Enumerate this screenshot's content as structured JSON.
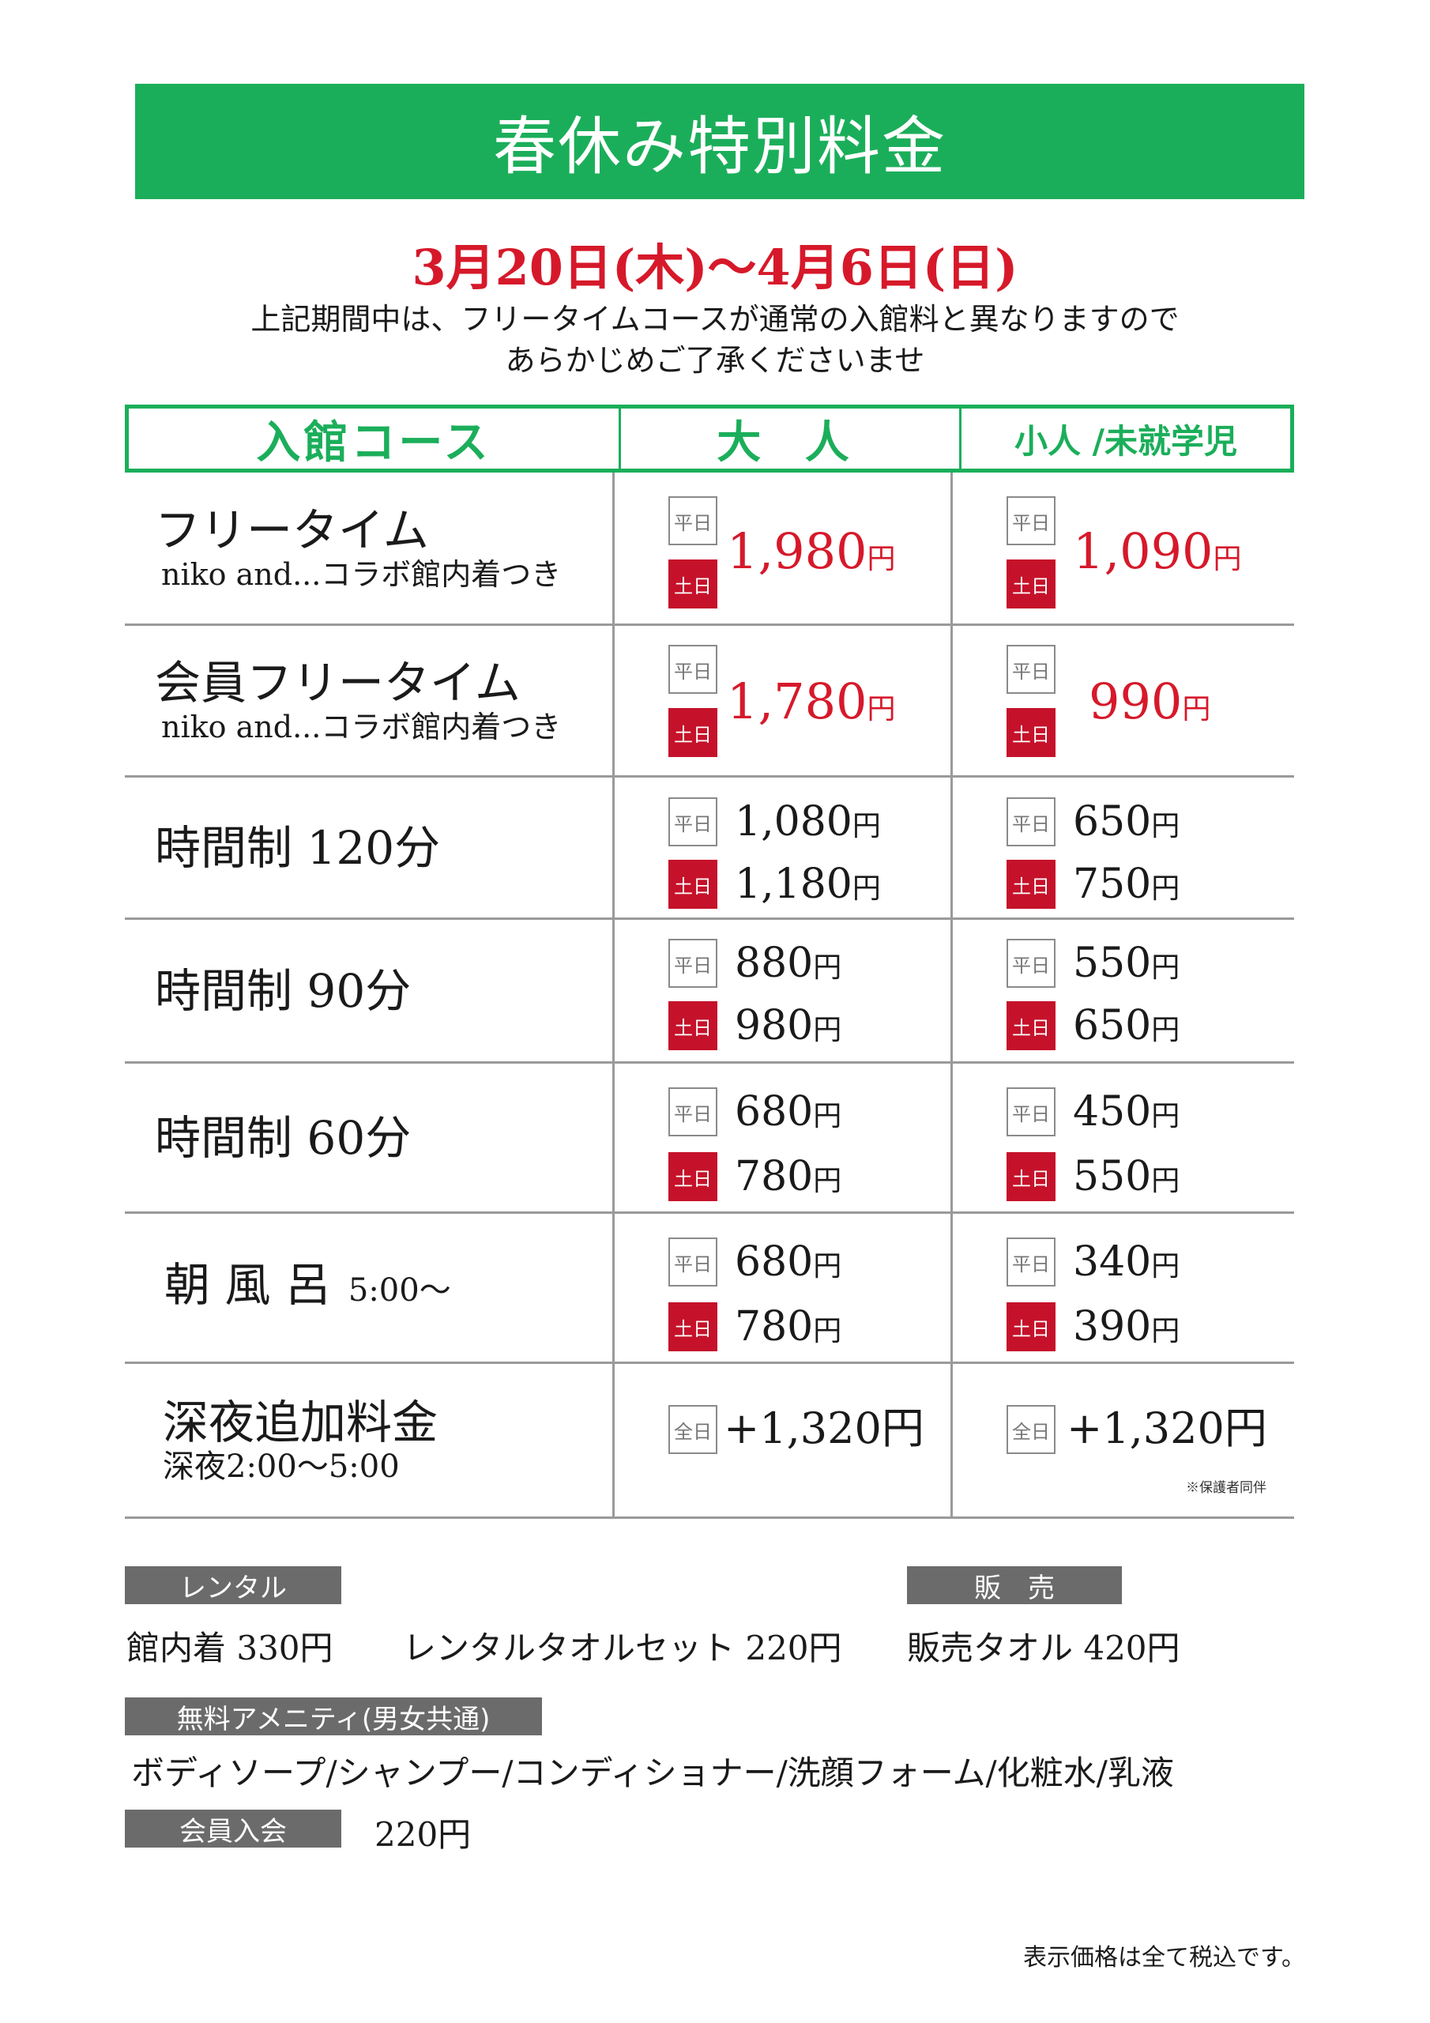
{
  "title": "春休み特別料金",
  "period": "3月20日(木)～4月6日(日)",
  "notice": [
    "上記期間中は、フリータイムコースが通常の入館料と異なりますので",
    "あらかじめご了承くださいませ"
  ],
  "header": {
    "course": "入館コース",
    "adult": "大 人",
    "child": "小人 /未就学児"
  },
  "badges": {
    "weekday": "平日",
    "weekend": "土日",
    "allday": "全日"
  },
  "yen": "円",
  "rows": [
    {
      "name": "フリータイム",
      "sub": "niko and...コラボ館内着つき",
      "adult": "1,980",
      "child": "1,090"
    },
    {
      "name": "会員フリータイム",
      "sub": "niko and...コラボ館内着つき",
      "adult": "1,780",
      "child": "990"
    },
    {
      "name": "時間制 120分",
      "adult_wk": "1,080",
      "adult_we": "1,180",
      "child_wk": "650",
      "child_we": "750"
    },
    {
      "name": "時間制 90分",
      "adult_wk": "880",
      "adult_we": "980",
      "child_wk": "550",
      "child_we": "650"
    },
    {
      "name": "時間制 60分",
      "adult_wk": "680",
      "adult_we": "780",
      "child_wk": "450",
      "child_we": "550"
    },
    {
      "name": "朝 風 呂",
      "time": "5:00～",
      "adult_wk": "680",
      "adult_we": "780",
      "child_wk": "340",
      "child_we": "390"
    },
    {
      "name": "深夜追加料金",
      "sub": "深夜2:00～5:00",
      "adult": "+1,320円",
      "child": "+1,320円",
      "note": "※保護者同伴"
    }
  ],
  "rental": {
    "label": "レンタル",
    "item1": "館内着 330円",
    "item2": "レンタルタオルセット 220円"
  },
  "sale": {
    "label": "販　売",
    "item": "販売タオル 420円"
  },
  "amenity": {
    "label": "無料アメニティ(男女共通)",
    "items": "ボディソープ/シャンプー/コンディショナー/洗顔フォーム/化粧水/乳液"
  },
  "membership": {
    "label": "会員入会",
    "price": "220円"
  },
  "footer": "表示価格は全て税込です。",
  "colors": {
    "green": "#1bae5a",
    "red": "#d6192a",
    "weekend_badge": "#c5122a",
    "label_gray": "#6b6b6b"
  }
}
